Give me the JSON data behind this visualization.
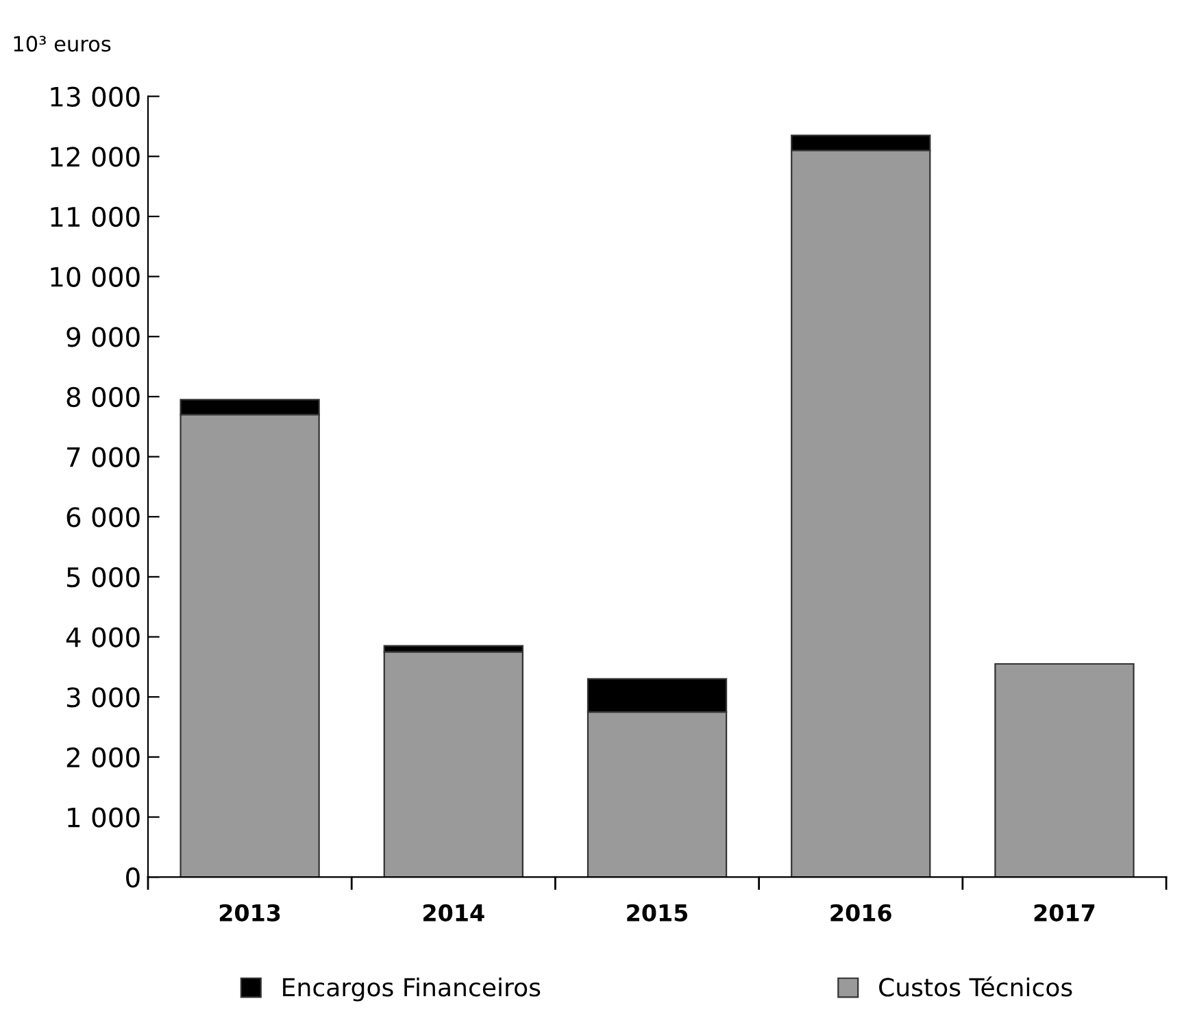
{
  "chart_data": {
    "type": "bar",
    "ylabel": "10³ euros",
    "categories": [
      "2013",
      "2014",
      "2015",
      "2016",
      "2017"
    ],
    "stacked": true,
    "series": [
      {
        "name": "Custos Técnicos",
        "color": "#9a9a9a",
        "values": [
          7700,
          3750,
          2750,
          12100,
          3550
        ]
      },
      {
        "name": "Encargos Financeiros",
        "color": "#000000",
        "values": [
          250,
          100,
          550,
          250,
          null
        ]
      }
    ],
    "ylim": [
      0,
      13000
    ],
    "yticks": [
      {
        "value": 0,
        "label": "0"
      },
      {
        "value": 1000,
        "label": "1 000"
      },
      {
        "value": 2000,
        "label": "2 000"
      },
      {
        "value": 3000,
        "label": "3 000"
      },
      {
        "value": 4000,
        "label": "4 000"
      },
      {
        "value": 5000,
        "label": "5 000"
      },
      {
        "value": 6000,
        "label": "6 000"
      },
      {
        "value": 7000,
        "label": "7 000"
      },
      {
        "value": 8000,
        "label": "8 000"
      },
      {
        "value": 9000,
        "label": "9 000"
      },
      {
        "value": 10000,
        "label": "10 000"
      },
      {
        "value": 11000,
        "label": "11 000"
      },
      {
        "value": 12000,
        "label": "12 000"
      },
      {
        "value": 13000,
        "label": "13 000"
      }
    ],
    "grid": false,
    "legend": "bottom"
  }
}
